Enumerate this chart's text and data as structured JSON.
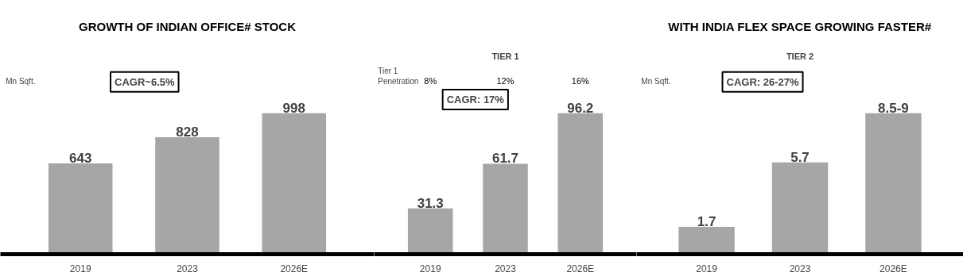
{
  "chart_data": [
    {
      "type": "bar",
      "title": "GROWTH OF INDIAN OFFICE# STOCK",
      "categories": [
        "2019",
        "2023",
        "2026E"
      ],
      "values": [
        643,
        828,
        998
      ],
      "color": "#a6a6a6",
      "data_labels": true,
      "annotations": [
        "Mn Sqft.",
        "CAGR~6.5%"
      ]
    },
    {
      "type": "bar",
      "subtitle": "TIER 1",
      "categories": [
        "2019",
        "2023",
        "2026E"
      ],
      "values": [
        31.3,
        61.7,
        96.2
      ],
      "color": "#a6a6a6",
      "data_labels": true,
      "annotations": [
        "Tier 1\nPenetration",
        "8%",
        "12%",
        "16%",
        "CAGR: 17%"
      ]
    },
    {
      "type": "bar",
      "title": "WITH INDIA FLEX SPACE GROWING FASTER#",
      "subtitle": "TIER 2",
      "categories": [
        "2019",
        "2023",
        "2026E"
      ],
      "values": [
        1.7,
        5.7,
        8.75
      ],
      "color": "#a6a6a6",
      "value_labels": [
        "1.7",
        "5.7",
        "8.5-9"
      ],
      "annotations": [
        "Mn Sqft.",
        "CAGR: 26-27%"
      ]
    }
  ]
}
